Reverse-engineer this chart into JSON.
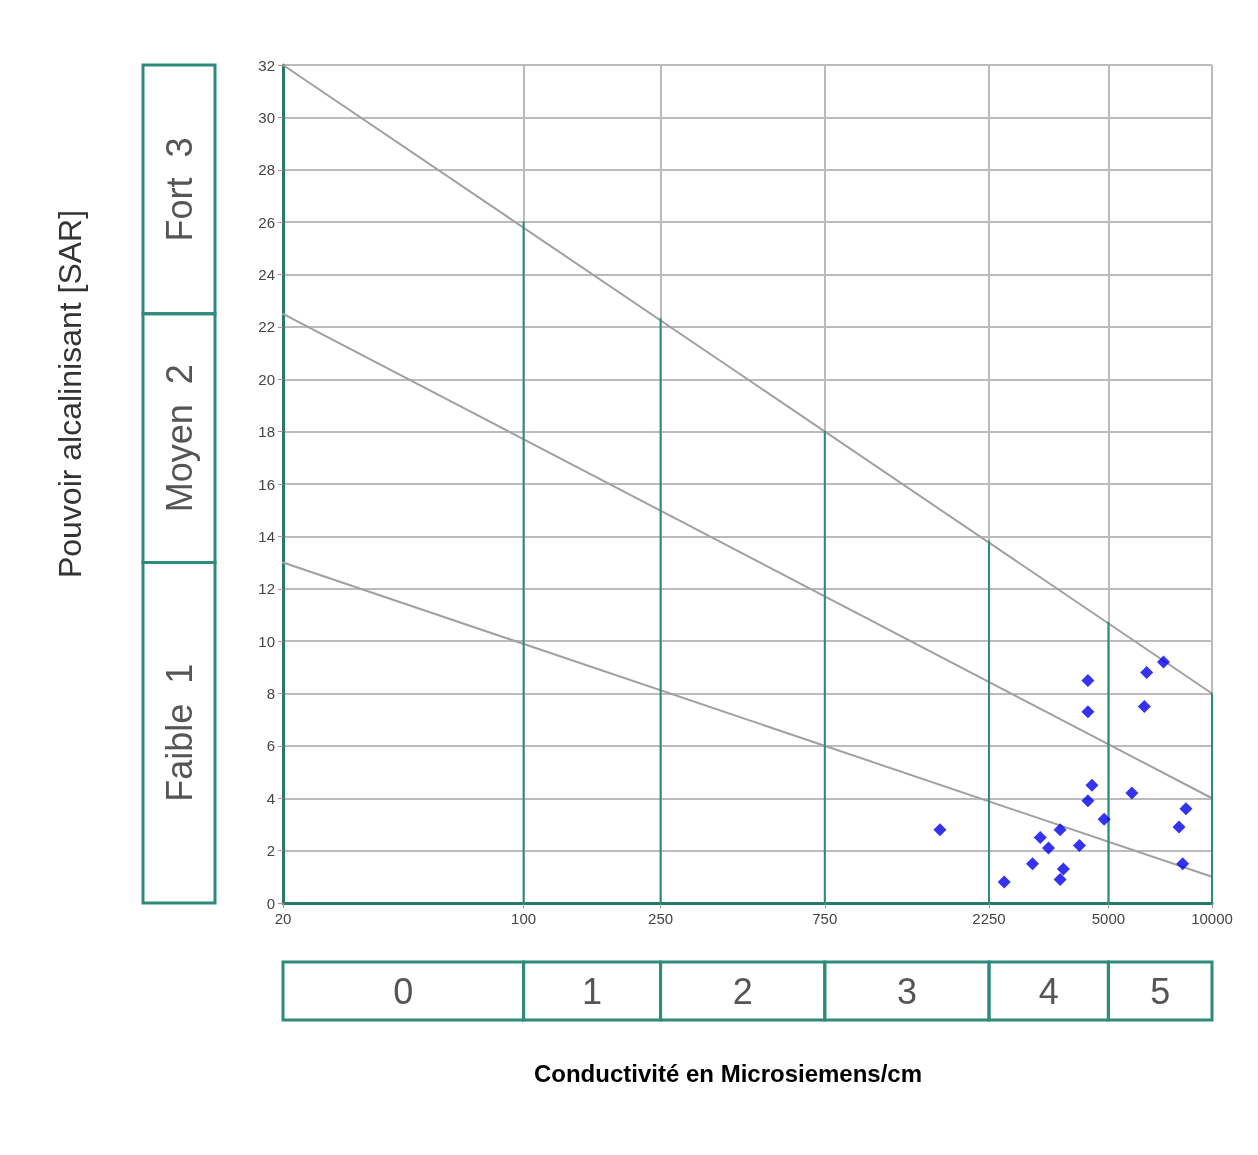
{
  "chart_data": {
    "type": "scatter",
    "log": "x",
    "xlim": [
      20,
      10000
    ],
    "xticks": [
      20,
      100,
      250,
      750,
      2250,
      5000,
      10000
    ],
    "ylim": [
      0,
      32
    ],
    "yticks": [
      0,
      2,
      4,
      6,
      8,
      10,
      12,
      14,
      16,
      18,
      20,
      22,
      24,
      26,
      28,
      30,
      32
    ],
    "grid": true,
    "series": [
      {
        "type": "line",
        "color": "#a0a0a0",
        "x": [
          20,
          10000
        ],
        "values": [
          32,
          8
        ]
      },
      {
        "type": "line",
        "color": "#a0a0a0",
        "x": [
          20,
          10000
        ],
        "values": [
          22.5,
          4
        ]
      },
      {
        "type": "line",
        "color": "#a0a0a0",
        "x": [
          20,
          10000
        ],
        "values": [
          13,
          1
        ]
      },
      {
        "type": "line",
        "color": "#2e8b7a",
        "x": [
          100,
          100
        ],
        "values": [
          0,
          26
        ]
      },
      {
        "type": "line",
        "color": "#2e8b7a",
        "x": [
          250,
          250
        ],
        "values": [
          0,
          22.3
        ]
      },
      {
        "type": "line",
        "color": "#2e8b7a",
        "x": [
          750,
          750
        ],
        "values": [
          0,
          18
        ]
      },
      {
        "type": "line",
        "color": "#2e8b7a",
        "x": [
          2250,
          2250
        ],
        "values": [
          0,
          13.8
        ]
      },
      {
        "type": "line",
        "color": "#2e8b7a",
        "x": [
          5000,
          5000
        ],
        "values": [
          0,
          10.7
        ]
      },
      {
        "type": "line",
        "color": "#2e8b7a",
        "x": [
          10000,
          10000
        ],
        "values": [
          0,
          8
        ]
      },
      {
        "marker": "diamond",
        "color": "#0000ee",
        "x": [
          1620,
          2490,
          3010,
          3170,
          3350,
          3620,
          3700,
          3620,
          4120,
          4360,
          4360,
          4480,
          4360,
          4860,
          5850,
          6360,
          6460,
          7230,
          8400,
          8020,
          8220
        ],
        "values": [
          2.8,
          0.8,
          1.5,
          2.5,
          2.1,
          2.8,
          1.3,
          0.9,
          2.2,
          8.5,
          7.3,
          4.5,
          3.9,
          3.2,
          4.2,
          7.5,
          8.8,
          9.2,
          3.6,
          2.9,
          1.5
        ]
      }
    ],
    "annotations": [
      "0",
      "1",
      "2",
      "3",
      "4",
      "5",
      "Faible  1",
      "Moyen  2",
      "Fort  3",
      "Conductivité en Microsiemens/cm",
      "Pouvoir alcalinisant [SAR]"
    ]
  }
}
